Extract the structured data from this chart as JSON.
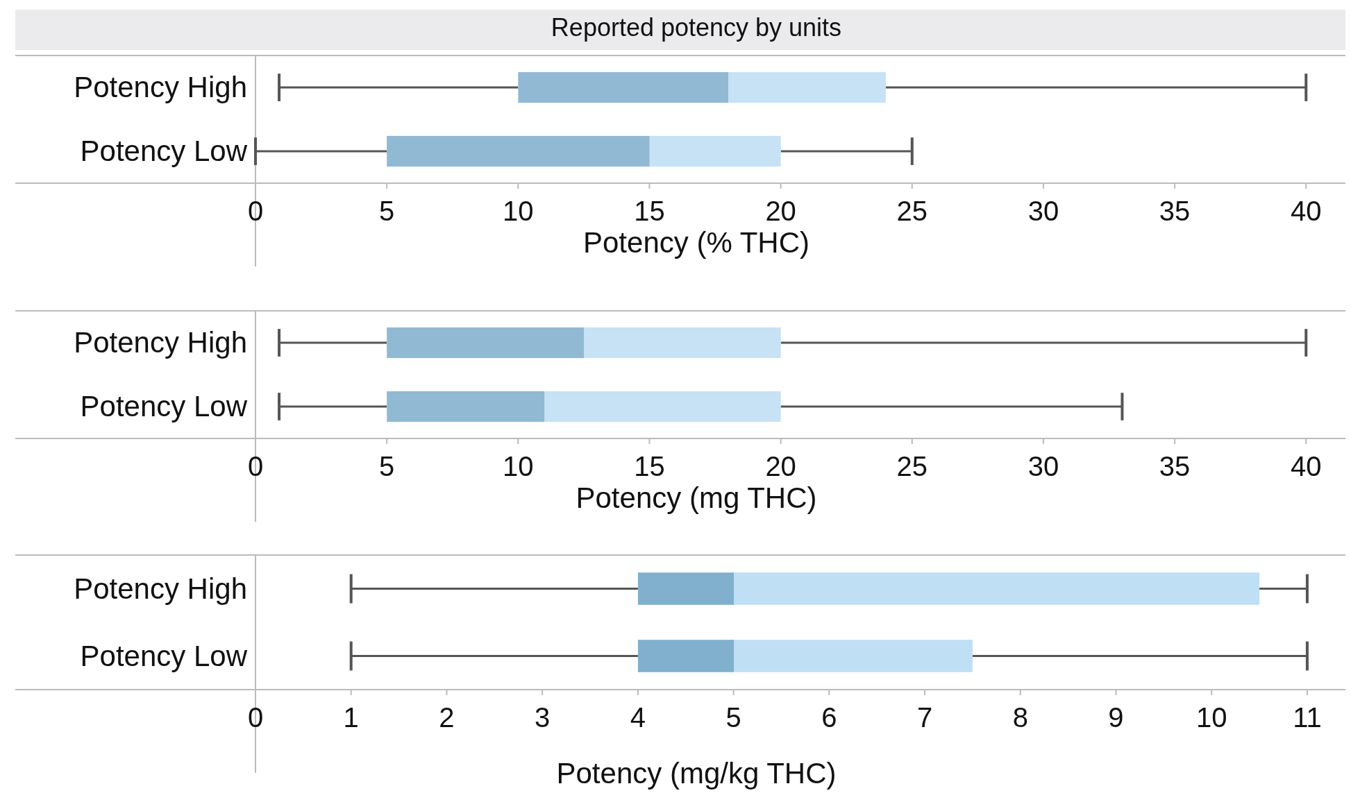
{
  "chart_data": [
    {
      "type": "box",
      "title": "Reported potency by units",
      "categories": [
        "Potency High",
        "Potency Low"
      ],
      "orientation": "horizontal",
      "xlabel": "Potency (% THC)",
      "xlim": [
        0,
        41.5
      ],
      "xticks": [
        0,
        5,
        10,
        15,
        20,
        25,
        30,
        35,
        40
      ],
      "colors": [
        "#91b9d3",
        "#c6e2f4"
      ],
      "boxes": [
        {
          "low": 0.9,
          "q1": 10,
          "median": 18,
          "q3": 24,
          "high": 40
        },
        {
          "low": 0,
          "q1": 5,
          "median": 15,
          "q3": 20,
          "high": 25
        }
      ]
    },
    {
      "type": "box",
      "categories": [
        "Potency High",
        "Potency Low"
      ],
      "orientation": "horizontal",
      "xlabel": "Potency (mg THC)",
      "xlim": [
        0,
        41.5
      ],
      "xticks": [
        0,
        5,
        10,
        15,
        20,
        25,
        30,
        35,
        40
      ],
      "colors": [
        "#91b9d3",
        "#c6e2f4"
      ],
      "boxes": [
        {
          "low": 0.9,
          "q1": 5,
          "median": 12.5,
          "q3": 20,
          "high": 40
        },
        {
          "low": 0.9,
          "q1": 5,
          "median": 11,
          "q3": 20,
          "high": 33
        }
      ]
    },
    {
      "type": "box",
      "categories": [
        "Potency High",
        "Potency Low"
      ],
      "orientation": "horizontal",
      "xlabel": "Potency (mg/kg THC)",
      "xlim": [
        0,
        11.4
      ],
      "xticks": [
        0,
        1,
        2,
        3,
        4,
        5,
        6,
        7,
        8,
        9,
        10,
        11
      ],
      "colors": [
        "#80b0ce",
        "#bfdff4"
      ],
      "boxes": [
        {
          "low": 1,
          "q1": 4,
          "median": 5,
          "q3": 10.5,
          "high": 11
        },
        {
          "low": 1,
          "q1": 4,
          "median": 5,
          "q3": 7.5,
          "high": 11
        }
      ]
    }
  ]
}
